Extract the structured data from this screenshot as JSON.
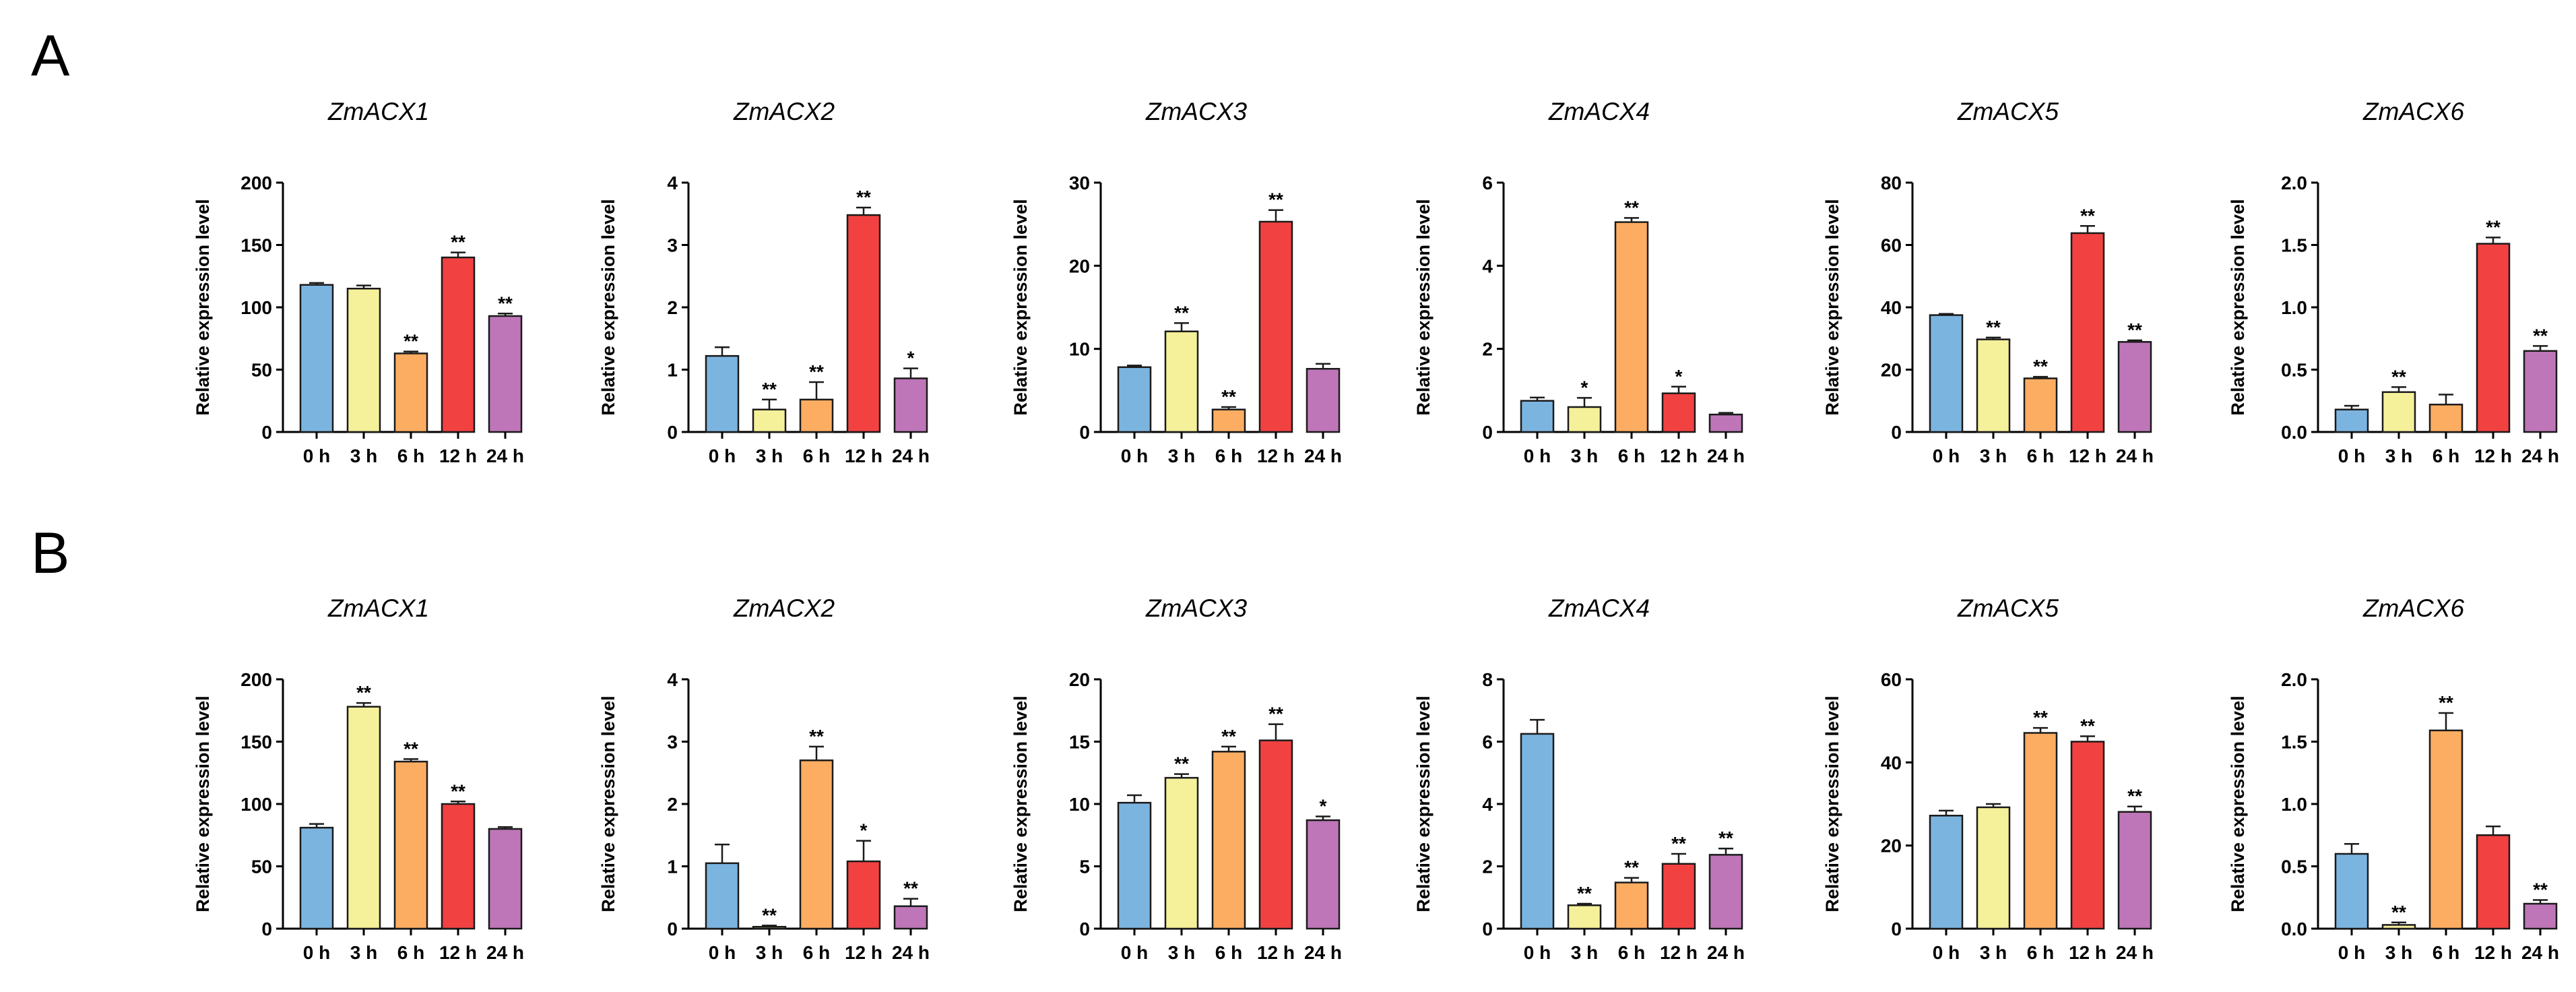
{
  "figure": {
    "panels": [
      {
        "label": "A"
      },
      {
        "label": "B"
      }
    ]
  },
  "colors": [
    "#7cb4e0",
    "#f5f09a",
    "#fdad62",
    "#f24141",
    "#be76b8"
  ],
  "chart_data": [
    {
      "panel": "A",
      "type": "bar",
      "title": "ZmACX1",
      "ylabel": "Relative expression level",
      "categories": [
        "0 h",
        "3 h",
        "6 h",
        "12 h",
        "24 h"
      ],
      "ylim": [
        0,
        200
      ],
      "yticks": [
        0,
        50,
        100,
        150,
        200
      ],
      "values": [
        118,
        115,
        63,
        140,
        93
      ],
      "errors": [
        1.5,
        2.5,
        1.5,
        4,
        2
      ],
      "significance": [
        "",
        "",
        "**",
        "**",
        "**"
      ]
    },
    {
      "panel": "A",
      "type": "bar",
      "title": "ZmACX2",
      "ylabel": "Relative expression level",
      "categories": [
        "0 h",
        "3 h",
        "6 h",
        "12 h",
        "24 h"
      ],
      "ylim": [
        0,
        4
      ],
      "yticks": [
        0,
        1,
        2,
        3,
        4
      ],
      "values": [
        1.22,
        0.36,
        0.52,
        3.48,
        0.86
      ],
      "errors": [
        0.14,
        0.16,
        0.28,
        0.12,
        0.16
      ],
      "significance": [
        "",
        "**",
        "**",
        "**",
        "*"
      ]
    },
    {
      "panel": "A",
      "type": "bar",
      "title": "ZmACX3",
      "ylabel": "Relative expression level",
      "categories": [
        "0 h",
        "3 h",
        "6 h",
        "12 h",
        "24 h"
      ],
      "ylim": [
        0,
        30
      ],
      "yticks": [
        0,
        10,
        20,
        30
      ],
      "values": [
        7.8,
        12.1,
        2.7,
        25.3,
        7.6
      ],
      "errors": [
        0.2,
        1.0,
        0.3,
        1.4,
        0.6
      ],
      "significance": [
        "",
        "**",
        "**",
        "**",
        ""
      ]
    },
    {
      "panel": "A",
      "type": "bar",
      "title": "ZmACX4",
      "ylabel": "Relative expression level",
      "categories": [
        "0 h",
        "3 h",
        "6 h",
        "12 h",
        "24 h"
      ],
      "ylim": [
        0,
        6
      ],
      "yticks": [
        0,
        2,
        4,
        6
      ],
      "values": [
        0.75,
        0.6,
        5.05,
        0.93,
        0.42
      ],
      "errors": [
        0.08,
        0.22,
        0.1,
        0.16,
        0.04
      ],
      "significance": [
        "",
        "*",
        "**",
        "*",
        ""
      ]
    },
    {
      "panel": "A",
      "type": "bar",
      "title": "ZmACX5",
      "ylabel": "Relative expression level",
      "categories": [
        "0 h",
        "3 h",
        "6 h",
        "12 h",
        "24 h"
      ],
      "ylim": [
        0,
        80
      ],
      "yticks": [
        0,
        20,
        40,
        60,
        80
      ],
      "values": [
        37.5,
        29.7,
        17.2,
        63.8,
        28.9
      ],
      "errors": [
        0.4,
        0.6,
        0.5,
        2.3,
        0.5
      ],
      "significance": [
        "",
        "**",
        "**",
        "**",
        "**"
      ]
    },
    {
      "panel": "A",
      "type": "bar",
      "title": "ZmACX6",
      "ylabel": "Relative expression level",
      "categories": [
        "0 h",
        "3 h",
        "6 h",
        "12 h",
        "24 h"
      ],
      "ylim": [
        0,
        2.0
      ],
      "yticks": [
        0,
        0.5,
        1.0,
        1.5,
        2.0
      ],
      "ytick_labels": [
        "0.0",
        "0.5",
        "1.0",
        "1.5",
        "2.0"
      ],
      "values": [
        0.18,
        0.32,
        0.22,
        1.51,
        0.65
      ],
      "errors": [
        0.03,
        0.04,
        0.08,
        0.05,
        0.04
      ],
      "significance": [
        "",
        "**",
        "",
        "**",
        "**"
      ]
    },
    {
      "panel": "B",
      "type": "bar",
      "title": "ZmACX1",
      "ylabel": "Relative expression level",
      "categories": [
        "0 h",
        "3 h",
        "6 h",
        "12 h",
        "24 h"
      ],
      "ylim": [
        0,
        200
      ],
      "yticks": [
        0,
        50,
        100,
        150,
        200
      ],
      "values": [
        81,
        178,
        134,
        100,
        80
      ],
      "errors": [
        3,
        3,
        2,
        2,
        1.5
      ],
      "significance": [
        "",
        "**",
        "**",
        "**",
        ""
      ]
    },
    {
      "panel": "B",
      "type": "bar",
      "title": "ZmACX2",
      "ylabel": "Relative expression level",
      "categories": [
        "0 h",
        "3 h",
        "6 h",
        "12 h",
        "24 h"
      ],
      "ylim": [
        0,
        4
      ],
      "yticks": [
        0,
        1,
        2,
        3,
        4
      ],
      "values": [
        1.05,
        0.03,
        2.7,
        1.08,
        0.36
      ],
      "errors": [
        0.3,
        0.02,
        0.22,
        0.33,
        0.12
      ],
      "significance": [
        "",
        "**",
        "**",
        "*",
        "**"
      ]
    },
    {
      "panel": "B",
      "type": "bar",
      "title": "ZmACX3",
      "ylabel": "Relative expression level",
      "categories": [
        "0 h",
        "3 h",
        "6 h",
        "12 h",
        "24 h"
      ],
      "ylim": [
        0,
        20
      ],
      "yticks": [
        0,
        5,
        10,
        15,
        20
      ],
      "values": [
        10.1,
        12.1,
        14.2,
        15.1,
        8.7
      ],
      "errors": [
        0.6,
        0.3,
        0.4,
        1.3,
        0.3
      ],
      "significance": [
        "",
        "**",
        "**",
        "**",
        "*"
      ]
    },
    {
      "panel": "B",
      "type": "bar",
      "title": "ZmACX4",
      "ylabel": "Relative expression level",
      "categories": [
        "0 h",
        "3 h",
        "6 h",
        "12 h",
        "24 h"
      ],
      "ylim": [
        0,
        8
      ],
      "yticks": [
        0,
        2,
        4,
        6,
        8
      ],
      "values": [
        6.25,
        0.75,
        1.48,
        2.08,
        2.37
      ],
      "errors": [
        0.45,
        0.05,
        0.15,
        0.32,
        0.2
      ],
      "significance": [
        "",
        "**",
        "**",
        "**",
        "**"
      ]
    },
    {
      "panel": "B",
      "type": "bar",
      "title": "ZmACX5",
      "ylabel": "Relative expression level",
      "categories": [
        "0 h",
        "3 h",
        "6 h",
        "12 h",
        "24 h"
      ],
      "ylim": [
        0,
        60
      ],
      "yticks": [
        0,
        20,
        40,
        60
      ],
      "values": [
        27.2,
        29.2,
        47.1,
        45.0,
        28.1
      ],
      "errors": [
        1.2,
        0.8,
        1.2,
        1.3,
        1.3
      ],
      "significance": [
        "",
        "",
        "**",
        "**",
        "**"
      ]
    },
    {
      "panel": "B",
      "type": "bar",
      "title": "ZmACX6",
      "ylabel": "Relative expression level",
      "categories": [
        "0 h",
        "3 h",
        "6 h",
        "12 h",
        "24 h"
      ],
      "ylim": [
        0,
        2.0
      ],
      "yticks": [
        0,
        0.5,
        1.0,
        1.5,
        2.0
      ],
      "ytick_labels": [
        "0.0",
        "0.5",
        "1.0",
        "1.5",
        "2.0"
      ],
      "values": [
        0.6,
        0.03,
        1.59,
        0.75,
        0.2
      ],
      "errors": [
        0.08,
        0.02,
        0.14,
        0.07,
        0.03
      ],
      "significance": [
        "",
        "**",
        "**",
        "",
        "**"
      ]
    }
  ]
}
